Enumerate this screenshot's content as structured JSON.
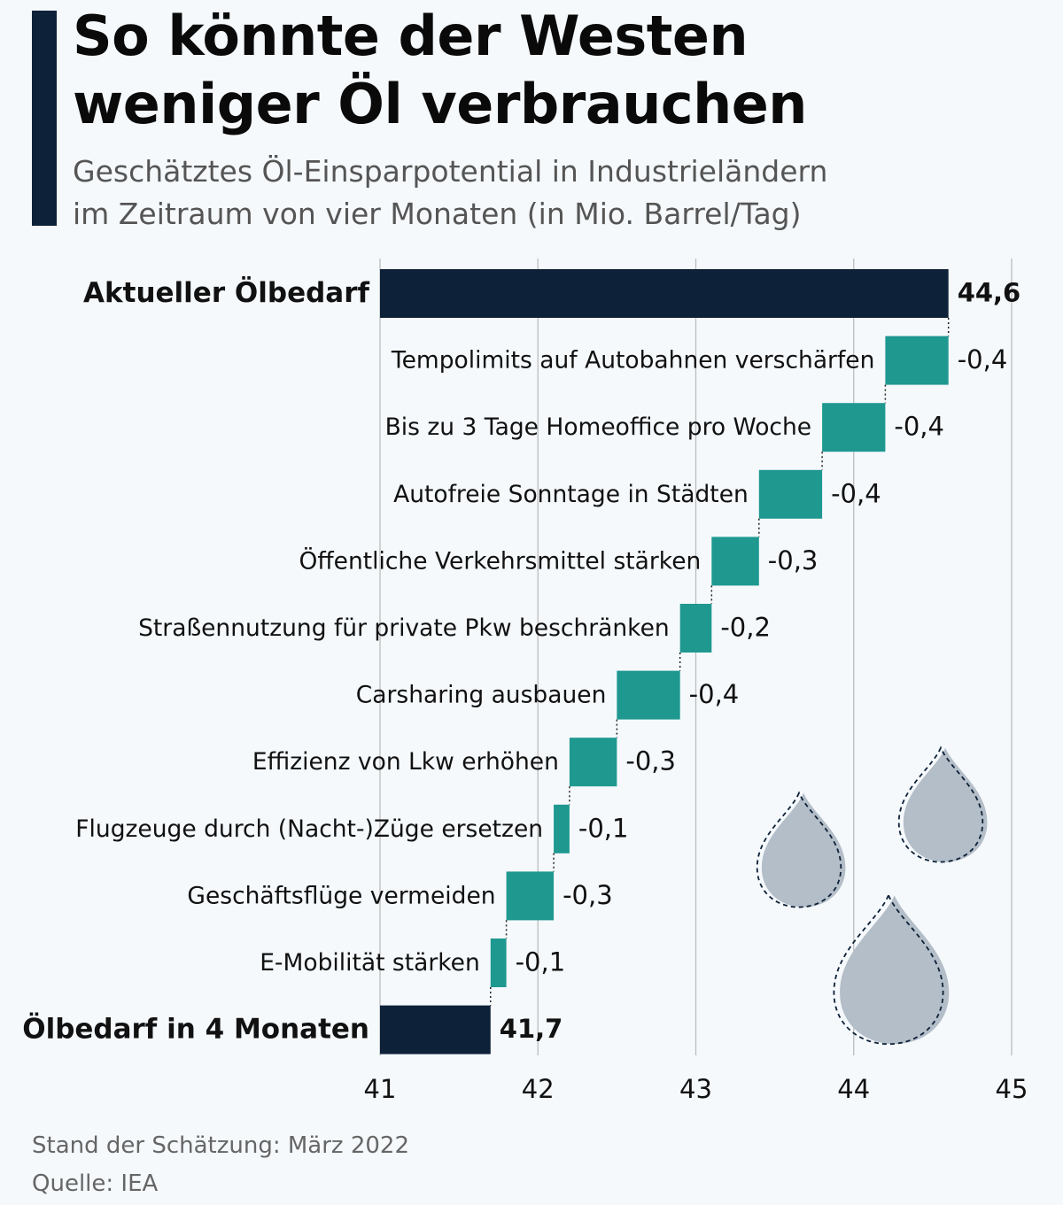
{
  "header": {
    "title_line1": "So könnte der Westen",
    "title_line2": "weniger Öl verbrauchen",
    "subtitle_line1": "Geschätztes Öl-Einsparpotential in Industrieländern",
    "subtitle_line2": "im Zeitraum von vier Monaten (in Mio. Barrel/Tag)"
  },
  "footer": {
    "date_note": "Stand der Schätzung: März 2022",
    "source": "Quelle: IEA"
  },
  "colors": {
    "total_bar": "#0d2138",
    "step_bar": "#1f9890",
    "gridline": "#bcbcbc",
    "drop_fill": "#b4bec8",
    "accent": "#0d2138"
  },
  "decorations": [
    "oil-drop-icon",
    "oil-drop-icon",
    "oil-drop-icon"
  ],
  "chart_data": {
    "type": "bar",
    "subtype": "waterfall",
    "orientation": "horizontal",
    "xlim": [
      41,
      45
    ],
    "xticks": [
      41,
      42,
      43,
      44,
      45
    ],
    "xtick_labels": [
      "41",
      "42",
      "43",
      "44",
      "45"
    ],
    "grid": "vertical",
    "items": [
      {
        "label": "Aktueller Ölbedarf",
        "value": 44.6,
        "value_label": "44,6",
        "kind": "total"
      },
      {
        "label": "Tempolimits auf Autobahnen verschärfen",
        "value": -0.4,
        "value_label": "-0,4",
        "kind": "step"
      },
      {
        "label": "Bis zu 3 Tage Homeoffice pro Woche",
        "value": -0.4,
        "value_label": "-0,4",
        "kind": "step"
      },
      {
        "label": "Autofreie Sonntage in Städten",
        "value": -0.4,
        "value_label": "-0,4",
        "kind": "step"
      },
      {
        "label": "Öffentliche Verkehrsmittel stärken",
        "value": -0.3,
        "value_label": "-0,3",
        "kind": "step"
      },
      {
        "label": "Straßennutzung für private Pkw beschränken",
        "value": -0.2,
        "value_label": "-0,2",
        "kind": "step"
      },
      {
        "label": "Carsharing ausbauen",
        "value": -0.4,
        "value_label": "-0,4",
        "kind": "step"
      },
      {
        "label": "Effizienz von Lkw erhöhen",
        "value": -0.3,
        "value_label": "-0,3",
        "kind": "step"
      },
      {
        "label": "Flugzeuge durch (Nacht-)Züge ersetzen",
        "value": -0.1,
        "value_label": "-0,1",
        "kind": "step"
      },
      {
        "label": "Geschäftsflüge vermeiden",
        "value": -0.3,
        "value_label": "-0,3",
        "kind": "step"
      },
      {
        "label": "E-Mobilität stärken",
        "value": -0.1,
        "value_label": "-0,1",
        "kind": "step"
      },
      {
        "label": "Ölbedarf in 4 Monaten",
        "value": 41.7,
        "value_label": "41,7",
        "kind": "total"
      }
    ]
  }
}
